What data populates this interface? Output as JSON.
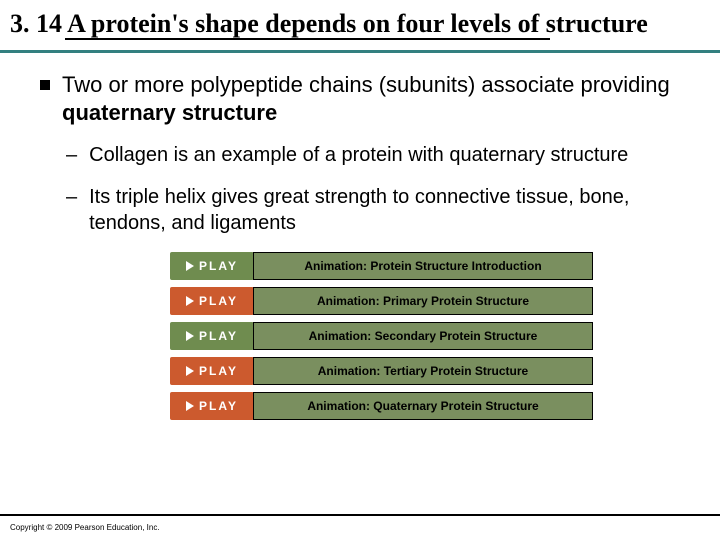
{
  "title": {
    "text": "3. 14 A protein's shape depends on four levels of structure"
  },
  "separator_color": "#338080",
  "main_bullet": {
    "prefix": "Two or more polypeptide chains (subunits) associate providing ",
    "bold": "quaternary structure"
  },
  "sub_bullets": [
    "Collagen is an example of a protein with quaternary structure",
    "Its triple helix gives great strength to connective tissue, bone, tendons, and ligaments"
  ],
  "play_buttons": {
    "badge_text": "PLAY",
    "label_bg": "#7a8f5f",
    "items": [
      {
        "color": "#6f8c4f",
        "label": "Animation: Protein Structure Introduction"
      },
      {
        "color": "#cc5a2e",
        "label": "Animation: Primary Protein Structure"
      },
      {
        "color": "#6f8c4f",
        "label": "Animation: Secondary Protein Structure"
      },
      {
        "color": "#cc5a2e",
        "label": "Animation: Tertiary Protein Structure"
      },
      {
        "color": "#cc5a2e",
        "label": "Animation: Quaternary Protein Structure"
      }
    ]
  },
  "copyright": "Copyright © 2009 Pearson Education, Inc."
}
